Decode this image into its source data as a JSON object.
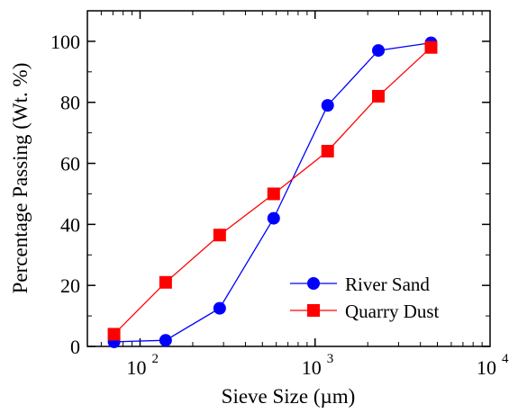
{
  "chart_data": {
    "type": "line",
    "title": "",
    "xlabel": "Sieve Size (µm)",
    "ylabel": "Percentage Passing (Wt. %)",
    "xscale": "log",
    "xlim": [
      50,
      10000
    ],
    "ylim": [
      0,
      110
    ],
    "yticks": [
      "0",
      "20",
      "40",
      "60",
      "80",
      "100"
    ],
    "xticks": [
      {
        "value": 100,
        "base": "10",
        "exp": "2"
      },
      {
        "value": 1000,
        "base": "10",
        "exp": "3"
      },
      {
        "value": 10000,
        "base": "10",
        "exp": "4"
      }
    ],
    "grid": false,
    "legend_position": "bottom-right",
    "series": [
      {
        "name": "River Sand",
        "color": "#0000ff",
        "marker": "circle",
        "x": [
          71,
          140,
          285,
          580,
          1180,
          2300,
          4600
        ],
        "y": [
          1.5,
          2,
          12.5,
          42,
          79,
          97,
          99.5
        ]
      },
      {
        "name": "Quarry Dust",
        "color": "#ff0000",
        "marker": "square",
        "x": [
          71,
          140,
          285,
          580,
          1180,
          2300,
          4600
        ],
        "y": [
          4,
          21,
          36.5,
          50,
          64,
          82,
          98
        ]
      }
    ]
  }
}
